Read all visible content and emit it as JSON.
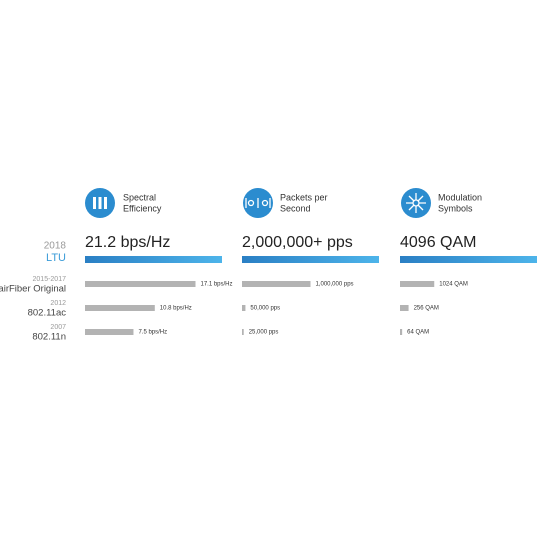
{
  "rows": [
    {
      "year": "2018",
      "name": "LTU"
    },
    {
      "year": "2015-2017",
      "name": "airFiber Original"
    },
    {
      "year": "2012",
      "name": "802.11ac"
    },
    {
      "year": "2007",
      "name": "802.11n"
    }
  ],
  "chart_data": [
    {
      "type": "bar",
      "title": [
        "Spectral",
        "Efficiency"
      ],
      "values": [
        21.2,
        17.1,
        10.8,
        7.5
      ],
      "value_labels": [
        "21.2 bps/Hz",
        "17.1 bps/Hz",
        "10.8 bps/Hz",
        "7.5 bps/Hz"
      ]
    },
    {
      "type": "bar",
      "title": [
        "Packets per",
        "Second"
      ],
      "values": [
        2000000,
        1000000,
        50000,
        25000
      ],
      "value_labels": [
        "2,000,000+ pps",
        "1,000,000 pps",
        "50,000 pps",
        "25,000 pps"
      ]
    },
    {
      "type": "bar",
      "title": [
        "Modulation",
        "Symbols"
      ],
      "values": [
        4096,
        1024,
        256,
        64
      ],
      "value_labels": [
        "4096 QAM",
        "1024 QAM",
        "256 QAM",
        "64 QAM"
      ]
    }
  ],
  "colors": {
    "highlight": "#3a9bd8",
    "other": "#b3b3b3"
  }
}
